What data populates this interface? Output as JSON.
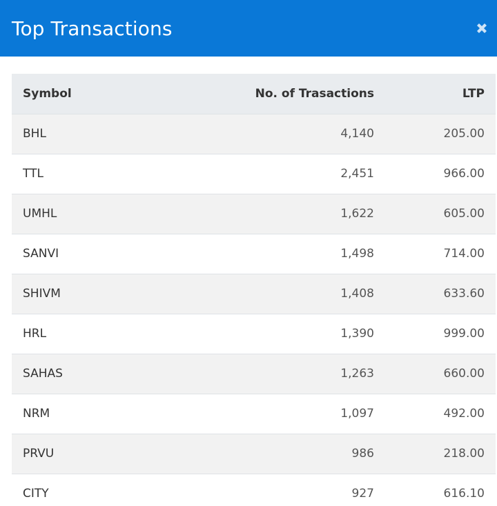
{
  "modal": {
    "title": "Top Transactions",
    "close_icon": "times-icon",
    "header_color": "#0a78d7"
  },
  "table": {
    "headers": {
      "symbol": "Symbol",
      "transactions": "No. of Trasactions",
      "ltp": "LTP"
    },
    "rows": [
      {
        "symbol": "BHL",
        "transactions": "4,140",
        "ltp": "205.00"
      },
      {
        "symbol": "TTL",
        "transactions": "2,451",
        "ltp": "966.00"
      },
      {
        "symbol": "UMHL",
        "transactions": "1,622",
        "ltp": "605.00"
      },
      {
        "symbol": "SANVI",
        "transactions": "1,498",
        "ltp": "714.00"
      },
      {
        "symbol": "SHIVM",
        "transactions": "1,408",
        "ltp": "633.60"
      },
      {
        "symbol": "HRL",
        "transactions": "1,390",
        "ltp": "999.00"
      },
      {
        "symbol": "SAHAS",
        "transactions": "1,263",
        "ltp": "660.00"
      },
      {
        "symbol": "NRM",
        "transactions": "1,097",
        "ltp": "492.00"
      },
      {
        "symbol": "PRVU",
        "transactions": "986",
        "ltp": "218.00"
      },
      {
        "symbol": "CITY",
        "transactions": "927",
        "ltp": "616.10"
      }
    ]
  }
}
